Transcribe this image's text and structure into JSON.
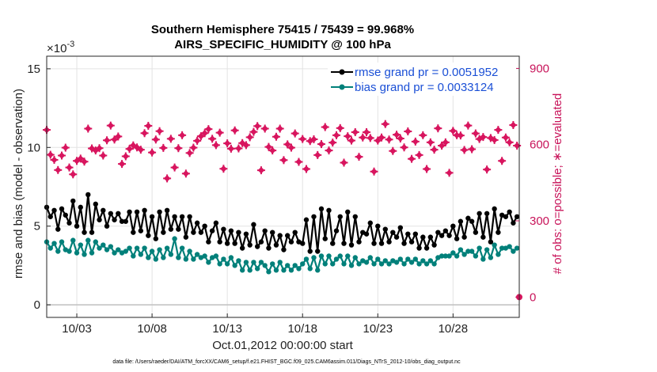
{
  "chart_data": {
    "type": "line",
    "title_line1": "Southern Hemisphere 75415 / 75439 = 99.968%",
    "title_line2": "AIRS_SPECIFIC_HUMIDITY @ 100 hPa",
    "exponent_label": "×10",
    "exponent_power": "-3",
    "ylabel": "rmse and bias (model - observation)",
    "ylabel_right": "# of obs: o=possible; ∗=evaluated",
    "xlabel": "Oct.01,2012 00:00:00 start",
    "footer": "data file: /Users/raeder/DAI/ATM_forcXX/CAM6_setup/f.e21.FHIST_BGC.f09_025.CAM6assim.011/Diags_NTrS_2012-10/obs_diag_output.nc",
    "xlim": [
      1.0,
      32.4
    ],
    "ylim": [
      -0.0008,
      0.0158
    ],
    "ylim_right": [
      -80,
      948
    ],
    "x_ticks": [
      3,
      8,
      13,
      18,
      23,
      28
    ],
    "x_tick_labels": [
      "10/03",
      "10/08",
      "10/13",
      "10/18",
      "10/23",
      "10/28"
    ],
    "y_ticks": [
      0,
      0.005,
      0.01,
      0.015
    ],
    "y_tick_labels": [
      "0",
      "5",
      "10",
      "15"
    ],
    "y_ticks_right": [
      0,
      300,
      600,
      900
    ],
    "y_tick_labels_right": [
      "0",
      "300",
      "600",
      "900"
    ],
    "colors": {
      "rmse": "#000000",
      "bias": "#00807a",
      "obs": "#d8155e",
      "legend_text": "#1a4fd6",
      "right_axis": "#c8145a"
    },
    "series": [
      {
        "name": "rmse grand pr = 0.0051952",
        "x_start": 1.0,
        "x_step": 0.25,
        "values": [
          0.0062,
          0.0056,
          0.006,
          0.0048,
          0.0061,
          0.0057,
          0.0052,
          0.0066,
          0.005,
          0.0062,
          0.0046,
          0.007,
          0.0046,
          0.0064,
          0.0054,
          0.006,
          0.005,
          0.0058,
          0.0054,
          0.0058,
          0.0053,
          0.0053,
          0.0059,
          0.0046,
          0.0059,
          0.0047,
          0.006,
          0.0044,
          0.0056,
          0.0042,
          0.0059,
          0.0046,
          0.006,
          0.0048,
          0.0056,
          0.0048,
          0.0056,
          0.0043,
          0.0056,
          0.0046,
          0.0052,
          0.0046,
          0.005,
          0.004,
          0.0047,
          0.0052,
          0.004,
          0.0048,
          0.0039,
          0.0047,
          0.0039,
          0.0046,
          0.0036,
          0.0045,
          0.0038,
          0.0051,
          0.0037,
          0.004,
          0.0047,
          0.0036,
          0.0046,
          0.0038,
          0.0044,
          0.0035,
          0.0044,
          0.004,
          0.0046,
          0.004,
          0.0039,
          0.0054,
          0.0034,
          0.0056,
          0.0034,
          0.0061,
          0.0042,
          0.006,
          0.0039,
          0.0047,
          0.0056,
          0.0039,
          0.0059,
          0.0038,
          0.0056,
          0.004,
          0.0046,
          0.0045,
          0.0052,
          0.0039,
          0.005,
          0.0039,
          0.0048,
          0.004,
          0.0046,
          0.0043,
          0.0049,
          0.0039,
          0.0045,
          0.004,
          0.0045,
          0.0036,
          0.0043,
          0.0036,
          0.0043,
          0.0038,
          0.0046,
          0.0044,
          0.0047,
          0.0044,
          0.005,
          0.0042,
          0.0053,
          0.0043,
          0.0055,
          0.0053,
          0.0046,
          0.0058,
          0.0043,
          0.0058,
          0.004,
          0.0061,
          0.0046,
          0.0057,
          0.0056,
          0.0059,
          0.0052,
          0.0056,
          0.0053,
          0.0049,
          0.0053,
          0.005,
          0.0054,
          0.0049,
          0.0056,
          0.005,
          0.0054,
          0.005,
          0.0058,
          0.0051,
          0.0055,
          0.0062,
          0.0056,
          0.0065,
          0.0058,
          0.0068,
          0.0071,
          0.0066,
          0.007,
          0.0057,
          0.0068,
          0.0058,
          0.0064,
          0.0059,
          0.0066,
          0.0057,
          0.0062,
          0.0058,
          0.0062,
          0.0062,
          0.0061,
          0.0068,
          0.0062,
          0.0058
        ]
      },
      {
        "name": "bias grand pr = 0.0033124",
        "x_start": 1.0,
        "x_step": 0.25,
        "values": [
          0.004,
          0.0036,
          0.0039,
          0.0034,
          0.004,
          0.0035,
          0.0034,
          0.0041,
          0.0033,
          0.0038,
          0.0032,
          0.0041,
          0.0033,
          0.004,
          0.0036,
          0.0038,
          0.0035,
          0.0037,
          0.0033,
          0.0035,
          0.0033,
          0.0034,
          0.0036,
          0.0031,
          0.0036,
          0.0032,
          0.0036,
          0.003,
          0.0034,
          0.0029,
          0.0035,
          0.003,
          0.0036,
          0.0032,
          0.0042,
          0.003,
          0.0036,
          0.0029,
          0.0034,
          0.0029,
          0.0032,
          0.003,
          0.0031,
          0.0027,
          0.003,
          0.0031,
          0.0026,
          0.0029,
          0.0026,
          0.003,
          0.0025,
          0.0028,
          0.0022,
          0.0027,
          0.0022,
          0.0027,
          0.0023,
          0.0027,
          0.0025,
          0.0021,
          0.0026,
          0.0022,
          0.0027,
          0.0022,
          0.0025,
          0.0022,
          0.0025,
          0.0023,
          0.0026,
          0.0029,
          0.0023,
          0.003,
          0.0022,
          0.0031,
          0.0026,
          0.0031,
          0.0026,
          0.0029,
          0.0031,
          0.0026,
          0.0031,
          0.0025,
          0.003,
          0.0026,
          0.0028,
          0.0027,
          0.003,
          0.0026,
          0.0029,
          0.0026,
          0.0028,
          0.0026,
          0.0028,
          0.0027,
          0.0029,
          0.0026,
          0.0029,
          0.0027,
          0.0029,
          0.0026,
          0.0028,
          0.0026,
          0.0028,
          0.0026,
          0.003,
          0.0031,
          0.0031,
          0.0031,
          0.0033,
          0.0031,
          0.0035,
          0.0032,
          0.0034,
          0.0034,
          0.0031,
          0.0036,
          0.0029,
          0.0035,
          0.003,
          0.0038,
          0.0032,
          0.0036,
          0.0036,
          0.0037,
          0.0034,
          0.0036,
          0.0034,
          0.0033,
          0.0035,
          0.0032,
          0.0034,
          0.0033,
          0.0035,
          0.0033,
          0.0035,
          0.0033,
          0.0036,
          0.0034,
          0.0036,
          0.0036,
          0.0035,
          0.0038,
          0.0036,
          0.0043,
          0.0042,
          0.0036,
          0.005,
          0.0038,
          0.0043,
          0.004,
          0.0048,
          0.0046,
          0.0049,
          0.0041,
          0.0051,
          0.004,
          0.0049,
          0.0047,
          0.0048,
          0.005,
          0.0039,
          0.004
        ]
      },
      {
        "name": "# of obs evaluated",
        "axis": "right",
        "x_start": 1.0,
        "x_step": 0.25,
        "values": [
          658,
          560,
          540,
          500,
          557,
          588,
          510,
          483,
          536,
          545,
          533,
          663,
          585,
          577,
          586,
          557,
          617,
          675,
          620,
          632,
          524,
          554,
          583,
          597,
          589,
          580,
          645,
          674,
          569,
          620,
          653,
          587,
          467,
          623,
          510,
          586,
          637,
          486,
          567,
          588,
          615,
          633,
          645,
          661,
          623,
          598,
          647,
          505,
          605,
          584,
          656,
          585,
          606,
          598,
          629,
          650,
          673,
          499,
          663,
          591,
          577,
          631,
          663,
          539,
          601,
          588,
          644,
          532,
          622,
          504,
          614,
          621,
          559,
          602,
          669,
          577,
          608,
          637,
          665,
          529,
          633,
          616,
          649,
          552,
          628,
          649,
          626,
          494,
          616,
          628,
          681,
          620,
          575,
          639,
          624,
          589,
          652,
          544,
          612,
          559,
          637,
          504,
          609,
          580,
          664,
          596,
          609,
          489,
          654,
          637,
          636,
          579,
          675,
          582,
          644,
          622,
          630,
          502,
          626,
          618,
          658,
          536,
          628,
          609,
          677,
          596,
          596,
          582,
          601,
          553,
          659,
          580,
          623,
          546,
          637,
          628,
          670,
          554,
          615,
          518,
          637,
          645,
          666,
          579,
          640,
          555,
          668,
          587,
          625,
          615,
          656,
          538,
          660,
          603,
          612,
          642,
          558,
          607
        ]
      },
      {
        "name": "# of obs possible",
        "axis": "right",
        "x_start": 1.0,
        "x_step": 0.25,
        "values": [
          0,
          0,
          0,
          0,
          0,
          0,
          0,
          0,
          0,
          0,
          0,
          0,
          0,
          0,
          0,
          0,
          0,
          0,
          0,
          0,
          0,
          0,
          0,
          0,
          0,
          0,
          0,
          0,
          0,
          0,
          0,
          0,
          0,
          0,
          0,
          0,
          0,
          0,
          0,
          0,
          0,
          0,
          0,
          0,
          0,
          0,
          0,
          0,
          0,
          0,
          0,
          0,
          0,
          0,
          0,
          0,
          0,
          0,
          0,
          0,
          0,
          0,
          0,
          0,
          0,
          0,
          0,
          0,
          0,
          0,
          0,
          0,
          0,
          0,
          0,
          0,
          0,
          0,
          0,
          0,
          0,
          0,
          0,
          0,
          0,
          0,
          0,
          0,
          0,
          0,
          0,
          0,
          0,
          0,
          0,
          0,
          0,
          0,
          0,
          0,
          0,
          0,
          0,
          0,
          0,
          0,
          0,
          0,
          0,
          0,
          0,
          0,
          0,
          0,
          0,
          0,
          0,
          0,
          0,
          0,
          0,
          0,
          0,
          0,
          0,
          0,
          0,
          0,
          0,
          0,
          0,
          0,
          0,
          0,
          0,
          0,
          0,
          0,
          0,
          0,
          0,
          0,
          0,
          0,
          0,
          0,
          0,
          0,
          0,
          0,
          0,
          0,
          0,
          0,
          0,
          0,
          0,
          0
        ]
      }
    ],
    "legend": [
      "rmse grand pr = 0.0051952",
      "bias grand pr = 0.0033124"
    ],
    "legend_position": "top-right",
    "grid": true
  }
}
